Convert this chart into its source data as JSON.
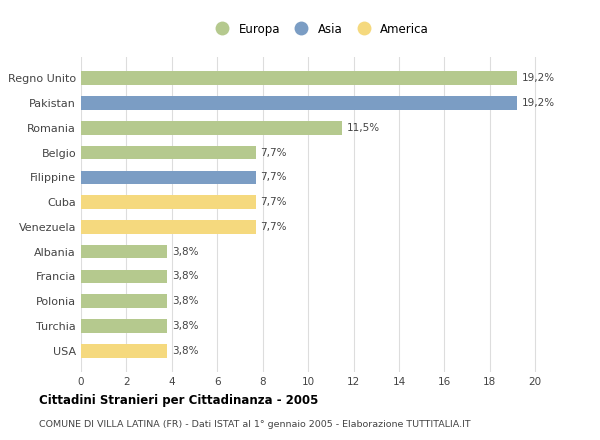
{
  "categories": [
    "Regno Unito",
    "Pakistan",
    "Romania",
    "Belgio",
    "Filippine",
    "Cuba",
    "Venezuela",
    "Albania",
    "Francia",
    "Polonia",
    "Turchia",
    "USA"
  ],
  "values": [
    19.2,
    19.2,
    11.5,
    7.7,
    7.7,
    7.7,
    7.7,
    3.8,
    3.8,
    3.8,
    3.8,
    3.8
  ],
  "labels": [
    "19,2%",
    "19,2%",
    "11,5%",
    "7,7%",
    "7,7%",
    "7,7%",
    "7,7%",
    "3,8%",
    "3,8%",
    "3,8%",
    "3,8%",
    "3,8%"
  ],
  "continents": [
    "Europa",
    "Asia",
    "Europa",
    "Europa",
    "Asia",
    "America",
    "America",
    "Europa",
    "Europa",
    "Europa",
    "Europa",
    "America"
  ],
  "colors": {
    "Europa": "#b5c98e",
    "Asia": "#7b9dc4",
    "America": "#f5d97e"
  },
  "legend_labels": [
    "Europa",
    "Asia",
    "America"
  ],
  "xlim": [
    0,
    21
  ],
  "xticks": [
    0,
    2,
    4,
    6,
    8,
    10,
    12,
    14,
    16,
    18,
    20
  ],
  "title": "Cittadini Stranieri per Cittadinanza - 2005",
  "subtitle": "COMUNE DI VILLA LATINA (FR) - Dati ISTAT al 1° gennaio 2005 - Elaborazione TUTTITALIA.IT",
  "background_color": "#ffffff",
  "grid_color": "#dddddd"
}
